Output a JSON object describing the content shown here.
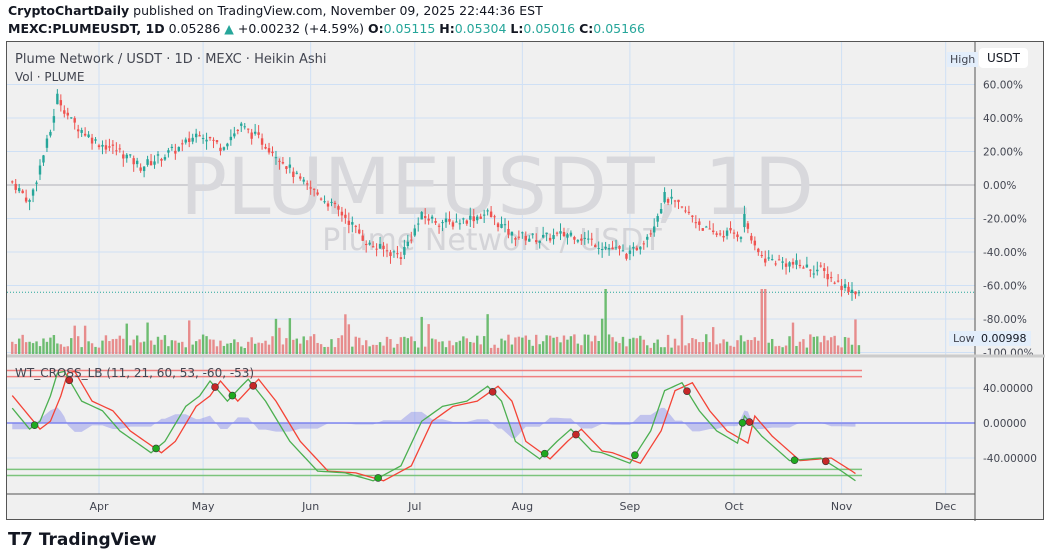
{
  "header": {
    "author": "CryptoChartDaily",
    "published": "published on TradingView.com, November 09, 2025 22:44:36 EST",
    "symbol": "MEXC:PLUMEUSDT, 1D",
    "last": "0.05286",
    "change": "+0.00232 (+4.59%)",
    "o_label": "O:",
    "o": "0.05115",
    "h_label": "H:",
    "h": "0.05304",
    "l_label": "L:",
    "l": "0.05016",
    "c_label": "C:",
    "c": "0.05166"
  },
  "legend": {
    "title": "Plume Network / USDT · 1D · MEXC · Heikin Ashi",
    "vol": "Vol · PLUME",
    "osc": "WT_CROSS_LB (11, 21, 60, 53, -60, -53)"
  },
  "watermark": {
    "line1": "PLUMEUSDT, 1D",
    "line2": "Plume Network / USDT"
  },
  "axis": {
    "currency": "USDT",
    "high_label": "High",
    "low_label": "Low",
    "low_value": "0.00998"
  },
  "brand": "TradingView",
  "colors": {
    "up": "#26a69a",
    "down": "#ef5350",
    "vol_up": "#4caf50",
    "vol_down": "#e57373",
    "wt1": "#4caf50",
    "wt2": "#f44336",
    "hist": "#7b7fe8"
  },
  "chart_data": [
    {
      "type": "candlestick",
      "style": "Heikin Ashi",
      "yunit": "percent",
      "ylim": [
        -100,
        65
      ],
      "yticks": [
        "60.00%",
        "40.00%",
        "20.00%",
        "0.00%",
        "-20.00%",
        "-40.00%",
        "-60.00%",
        "-80.00%",
        "-100.00%"
      ],
      "xticks": [
        "Apr",
        "May",
        "Jun",
        "Jul",
        "Aug",
        "Sep",
        "Oct",
        "Nov",
        "Dec"
      ],
      "series": [
        [
          "2025-03-07",
          2
        ],
        [
          "2025-03-12",
          -10
        ],
        [
          "2025-03-18",
          32
        ],
        [
          "2025-03-20",
          53
        ],
        [
          "2025-03-24",
          38
        ],
        [
          "2025-03-31",
          26
        ],
        [
          "2025-04-07",
          20
        ],
        [
          "2025-04-13",
          11
        ],
        [
          "2025-04-19",
          17
        ],
        [
          "2025-04-25",
          23
        ],
        [
          "2025-04-30",
          32
        ],
        [
          "2025-05-06",
          23
        ],
        [
          "2025-05-12",
          35
        ],
        [
          "2025-05-18",
          26
        ],
        [
          "2025-05-23",
          17
        ],
        [
          "2025-05-29",
          2
        ],
        [
          "2025-06-04",
          -7
        ],
        [
          "2025-06-11",
          -19
        ],
        [
          "2025-06-18",
          -36
        ],
        [
          "2025-06-27",
          -42
        ],
        [
          "2025-07-03",
          -19
        ],
        [
          "2025-07-11",
          -23
        ],
        [
          "2025-07-22",
          -17
        ],
        [
          "2025-07-29",
          -30
        ],
        [
          "2025-08-06",
          -32
        ],
        [
          "2025-08-15",
          -29
        ],
        [
          "2025-08-24",
          -36
        ],
        [
          "2025-09-01",
          -42
        ],
        [
          "2025-09-07",
          -27
        ],
        [
          "2025-09-11",
          -7
        ],
        [
          "2025-09-19",
          -19
        ],
        [
          "2025-09-24",
          -29
        ],
        [
          "2025-10-03",
          -29
        ],
        [
          "2025-10-04",
          -19
        ],
        [
          "2025-10-07",
          -39
        ],
        [
          "2025-10-10",
          -44
        ],
        [
          "2025-10-17",
          -47
        ],
        [
          "2025-10-26",
          -51
        ],
        [
          "2025-11-01",
          -60
        ],
        [
          "2025-11-06",
          -64
        ]
      ]
    },
    {
      "type": "line",
      "name": "WT_CROSS_LB",
      "ylim": [
        -75,
        75
      ],
      "yticks": [
        "40.00000",
        "0.00000",
        "-40.00000"
      ],
      "levels": [
        60,
        53,
        -60,
        -53
      ],
      "series": [
        [
          "2025-03-07",
          17
        ],
        [
          "2025-03-12",
          -7
        ],
        [
          "2025-03-15",
          2
        ],
        [
          "2025-03-18",
          31
        ],
        [
          "2025-03-20",
          57
        ],
        [
          "2025-03-22",
          59
        ],
        [
          "2025-03-27",
          25
        ],
        [
          "2025-04-02",
          14
        ],
        [
          "2025-04-07",
          -9
        ],
        [
          "2025-04-16",
          -34
        ],
        [
          "2025-04-20",
          -21
        ],
        [
          "2025-04-26",
          19
        ],
        [
          "2025-04-30",
          31
        ],
        [
          "2025-05-03",
          48
        ],
        [
          "2025-05-08",
          25
        ],
        [
          "2025-05-12",
          42
        ],
        [
          "2025-05-14",
          50
        ],
        [
          "2025-05-19",
          25
        ],
        [
          "2025-05-26",
          -21
        ],
        [
          "2025-06-03",
          -55
        ],
        [
          "2025-06-11",
          -57
        ],
        [
          "2025-06-19",
          -66
        ],
        [
          "2025-06-27",
          -49
        ],
        [
          "2025-07-03",
          2
        ],
        [
          "2025-07-09",
          19
        ],
        [
          "2025-07-16",
          25
        ],
        [
          "2025-07-22",
          42
        ],
        [
          "2025-07-26",
          25
        ],
        [
          "2025-07-30",
          -21
        ],
        [
          "2025-08-06",
          -41
        ],
        [
          "2025-08-11",
          -21
        ],
        [
          "2025-08-15",
          -7
        ],
        [
          "2025-08-21",
          -32
        ],
        [
          "2025-08-24",
          -34
        ],
        [
          "2025-09-01",
          -46
        ],
        [
          "2025-09-07",
          -9
        ],
        [
          "2025-09-11",
          37
        ],
        [
          "2025-09-16",
          46
        ],
        [
          "2025-09-21",
          14
        ],
        [
          "2025-09-26",
          -9
        ],
        [
          "2025-10-02",
          -23
        ],
        [
          "2025-10-04",
          8
        ],
        [
          "2025-10-09",
          -15
        ],
        [
          "2025-10-17",
          -43
        ],
        [
          "2025-10-26",
          -40
        ],
        [
          "2025-11-01",
          -55
        ],
        [
          "2025-11-05",
          -66
        ]
      ]
    }
  ]
}
